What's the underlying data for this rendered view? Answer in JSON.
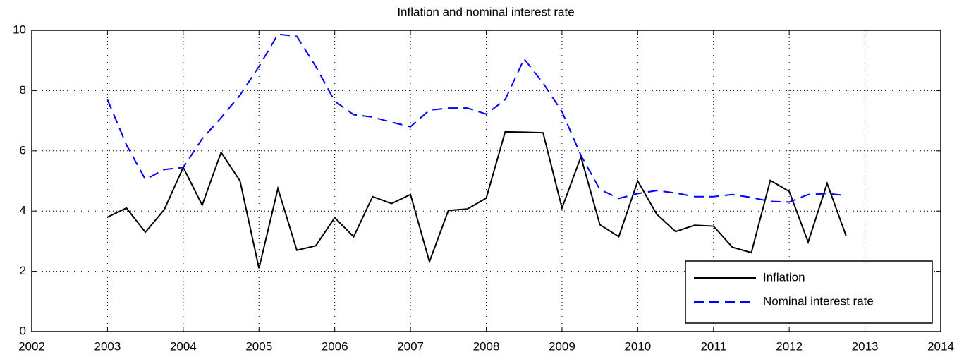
{
  "chart_data": {
    "type": "line",
    "title": "Inflation and nominal interest rate",
    "x": [
      2003,
      2003.25,
      2003.5,
      2003.75,
      2004,
      2004.25,
      2004.5,
      2004.75,
      2005,
      2005.25,
      2005.5,
      2005.75,
      2006,
      2006.25,
      2006.5,
      2006.75,
      2007,
      2007.25,
      2007.5,
      2007.75,
      2008,
      2008.25,
      2008.5,
      2008.75,
      2009,
      2009.25,
      2009.5,
      2009.75,
      2010,
      2010.25,
      2010.5,
      2010.75,
      2011,
      2011.25,
      2011.5,
      2011.75,
      2012,
      2012.25,
      2012.5,
      2012.75
    ],
    "series": [
      {
        "name": "Inflation",
        "color": "#000000",
        "dash": "solid",
        "values": [
          3.8,
          4.1,
          3.3,
          4.05,
          5.45,
          4.2,
          5.95,
          5.0,
          2.1,
          4.75,
          2.7,
          2.85,
          3.78,
          3.15,
          4.48,
          4.25,
          4.55,
          2.32,
          4.02,
          4.07,
          4.43,
          6.63,
          6.62,
          6.6,
          4.1,
          5.8,
          3.55,
          3.15,
          5.0,
          3.9,
          3.32,
          3.53,
          3.5,
          2.8,
          2.62,
          5.02,
          4.65,
          2.97,
          4.92,
          3.18
        ]
      },
      {
        "name": "Nominal interest rate",
        "color": "#0000ff",
        "dash": "dashed",
        "values": [
          7.7,
          6.2,
          5.05,
          5.38,
          5.45,
          6.4,
          7.1,
          7.85,
          8.8,
          9.87,
          9.8,
          8.8,
          7.65,
          7.2,
          7.12,
          6.95,
          6.8,
          7.35,
          7.42,
          7.42,
          7.22,
          7.7,
          9.05,
          8.25,
          7.3,
          5.85,
          4.72,
          4.42,
          4.58,
          4.68,
          4.6,
          4.48,
          4.48,
          4.55,
          4.45,
          4.32,
          4.3,
          4.55,
          4.58,
          4.52
        ]
      }
    ],
    "xlim": [
      2002,
      2014
    ],
    "xticks": [
      2002,
      2003,
      2004,
      2005,
      2006,
      2007,
      2008,
      2009,
      2010,
      2011,
      2012,
      2013,
      2014
    ],
    "ylim": [
      0,
      10
    ],
    "yticks": [
      0,
      2,
      4,
      6,
      8,
      10
    ],
    "grid": true,
    "legend": "lower right"
  }
}
